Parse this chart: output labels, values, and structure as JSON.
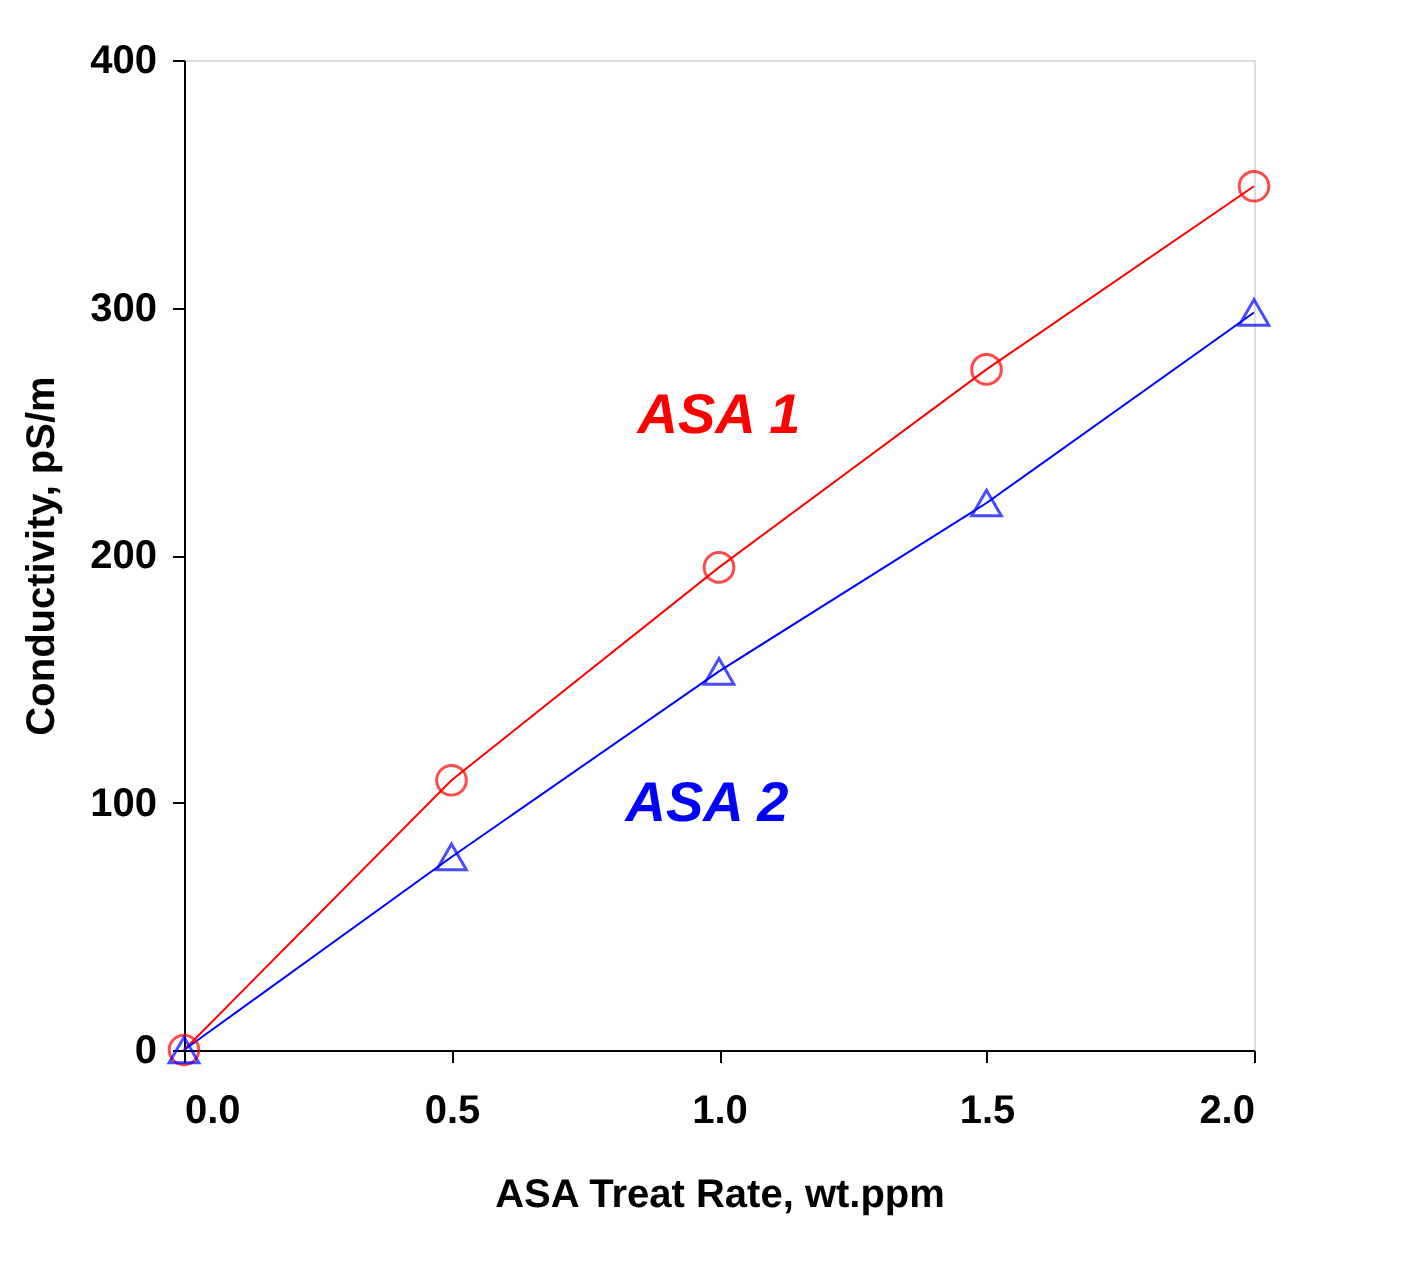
{
  "chart_data": {
    "type": "line",
    "xlabel": "ASA Treat Rate, wt.ppm",
    "ylabel": "Conductivity, pS/m",
    "x": [
      0,
      0.5,
      1.0,
      1.5,
      2.0
    ],
    "series": [
      {
        "name": "ASA 1",
        "color": "#ff0000",
        "marker": "circle",
        "values": [
          0,
          109,
          195,
          275,
          349
        ]
      },
      {
        "name": "ASA 2",
        "color": "#0000ff",
        "marker": "triangle",
        "values": [
          0,
          78,
          153,
          221,
          298
        ]
      }
    ],
    "xlim": [
      0,
      2.0
    ],
    "xticks": [
      {
        "value": 0,
        "label": "0.0"
      },
      {
        "value": 0.5,
        "label": "0.5"
      },
      {
        "value": 1.0,
        "label": "1.0"
      },
      {
        "value": 1.5,
        "label": "1.5"
      },
      {
        "value": 2.0,
        "label": "2.0"
      }
    ],
    "ylim": [
      0,
      400
    ],
    "yticks": [
      0,
      100,
      200,
      300,
      400
    ],
    "grid": false,
    "legend": false
  }
}
